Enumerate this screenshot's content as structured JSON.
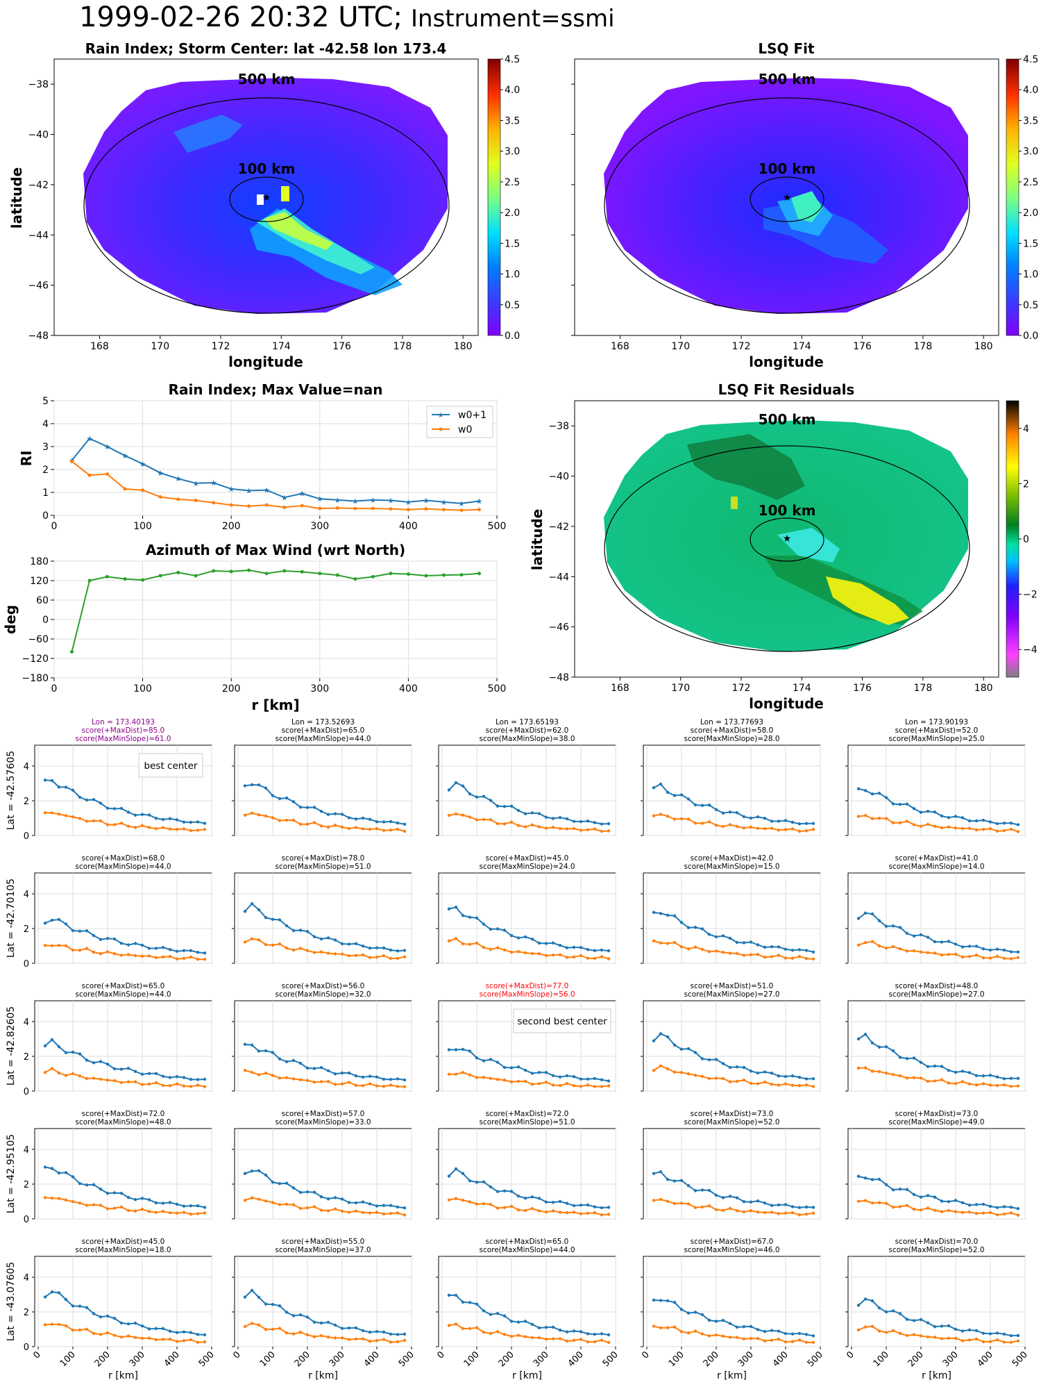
{
  "header": {
    "datetime": "1999-02-26 20:32 UTC;",
    "instrument": "Instrument=ssmi"
  },
  "maps": {
    "rain_title": "Rain Index; Storm Center: lat -42.58 lon 173.4",
    "fit_title": "LSQ Fit",
    "resid_title": "LSQ Fit Residuals",
    "xlabel": "longitude",
    "ylabel": "latitude",
    "ring_outer": "500 km",
    "ring_inner": "100 km",
    "xticks": [
      "168",
      "170",
      "172",
      "174",
      "176",
      "178",
      "180"
    ],
    "yticks": [
      "-38",
      "-40",
      "-42",
      "-44",
      "-46",
      "-48"
    ],
    "colorbar_ticks": [
      "0.0",
      "0.5",
      "1.0",
      "1.5",
      "2.0",
      "2.5",
      "3.0",
      "3.5",
      "4.0",
      "4.5"
    ],
    "resid_colorbar_ticks": [
      "4",
      "2",
      "0",
      "−2",
      "−4"
    ]
  },
  "chart_data": [
    {
      "type": "line",
      "title": "Rain Index; Max Value=nan",
      "xlabel": "",
      "ylabel": "RI",
      "xlim": [
        0,
        500
      ],
      "ylim": [
        0,
        5
      ],
      "grid": true,
      "legend": "top-right",
      "xticks": [
        "0",
        "100",
        "200",
        "300",
        "400",
        "500"
      ],
      "yticks": [
        "0",
        "1",
        "2",
        "3",
        "4",
        "5"
      ],
      "x": [
        20,
        40,
        60,
        80,
        100,
        120,
        140,
        160,
        180,
        200,
        220,
        240,
        260,
        280,
        300,
        320,
        340,
        360,
        380,
        400,
        420,
        440,
        460,
        480
      ],
      "series": [
        {
          "name": "w0+1",
          "color": "#1f77b4",
          "values": [
            2.4,
            3.35,
            3.0,
            2.6,
            2.25,
            1.85,
            1.6,
            1.4,
            1.42,
            1.15,
            1.08,
            1.1,
            0.78,
            0.95,
            0.72,
            0.67,
            0.62,
            0.67,
            0.65,
            0.58,
            0.65,
            0.58,
            0.52,
            0.62
          ]
        },
        {
          "name": "w0",
          "color": "#ff7f0e",
          "values": [
            2.35,
            1.75,
            1.8,
            1.15,
            1.1,
            0.8,
            0.7,
            0.65,
            0.55,
            0.45,
            0.4,
            0.45,
            0.35,
            0.42,
            0.3,
            0.32,
            0.3,
            0.3,
            0.28,
            0.25,
            0.28,
            0.25,
            0.22,
            0.25
          ]
        }
      ]
    },
    {
      "type": "line",
      "title": "Azimuth of Max Wind (wrt North)",
      "xlabel": "r [km]",
      "ylabel": "deg",
      "xlim": [
        0,
        500
      ],
      "ylim": [
        -180,
        180
      ],
      "grid": true,
      "xticks": [
        "0",
        "100",
        "200",
        "300",
        "400",
        "500"
      ],
      "yticks": [
        "180",
        "120",
        "60",
        "0",
        "−60",
        "−120",
        "−180"
      ],
      "x": [
        20,
        40,
        60,
        80,
        100,
        120,
        140,
        160,
        180,
        200,
        220,
        240,
        260,
        280,
        300,
        320,
        340,
        360,
        380,
        400,
        420,
        440,
        460,
        480
      ],
      "series": [
        {
          "color": "#2ca02c",
          "values": [
            -100,
            120,
            132,
            125,
            122,
            135,
            145,
            135,
            150,
            148,
            152,
            142,
            150,
            147,
            142,
            137,
            125,
            132,
            142,
            140,
            135,
            137,
            138,
            142
          ]
        }
      ]
    }
  ],
  "grid": {
    "xlabel": "r [km]",
    "xticks": [
      "0",
      "100",
      "200",
      "300",
      "400",
      "500"
    ],
    "yticks": [
      "0",
      "2",
      "4"
    ],
    "lon_labels": [
      "Lon = 173.40193",
      "Lon = 173.52693",
      "Lon = 173.65193",
      "Lon = 173.77693",
      "Lon = 173.90193"
    ],
    "lat_labels": [
      "Lat = -42.57605",
      "Lat = -42.70105",
      "Lat = -42.82605",
      "Lat = -42.95105",
      "Lat = -43.07605"
    ],
    "titles": [
      [
        "score(+MaxDist)=85.0|score(MaxMinSlope)=61.0",
        "score(+MaxDist)=65.0|score(MaxMinSlope)=44.0",
        "score(+MaxDist)=62.0|score(MaxMinSlope)=38.0",
        "score(+MaxDist)=58.0|score(MaxMinSlope)=28.0",
        "score(+MaxDist)=52.0|score(MaxMinSlope)=25.0"
      ],
      [
        "score(+MaxDist)=68.0|score(MaxMinSlope)=44.0",
        "score(+MaxDist)=78.0|score(MaxMinSlope)=51.0",
        "score(+MaxDist)=45.0|score(MaxMinSlope)=24.0",
        "score(+MaxDist)=42.0|score(MaxMinSlope)=15.0",
        "score(+MaxDist)=41.0|score(MaxMinSlope)=14.0"
      ],
      [
        "score(+MaxDist)=65.0|score(MaxMinSlope)=44.0",
        "score(+MaxDist)=56.0|score(MaxMinSlope)=32.0",
        "score(+MaxDist)=77.0|score(MaxMinSlope)=56.0",
        "score(+MaxDist)=51.0|score(MaxMinSlope)=27.0",
        "score(+MaxDist)=48.0|score(MaxMinSlope)=27.0"
      ],
      [
        "score(+MaxDist)=72.0|score(MaxMinSlope)=48.0",
        "score(+MaxDist)=57.0|score(MaxMinSlope)=33.0",
        "score(+MaxDist)=72.0|score(MaxMinSlope)=51.0",
        "score(+MaxDist)=73.0|score(MaxMinSlope)=52.0",
        "score(+MaxDist)=73.0|score(MaxMinSlope)=49.0"
      ],
      [
        "score(+MaxDist)=45.0|score(MaxMinSlope)=18.0",
        "score(+MaxDist)=55.0|score(MaxMinSlope)=37.0",
        "score(+MaxDist)=65.0|score(MaxMinSlope)=44.0",
        "score(+MaxDist)=67.0|score(MaxMinSlope)=46.0",
        "score(+MaxDist)=70.0|score(MaxMinSlope)=52.0"
      ]
    ],
    "best_label": "best center",
    "second_label": "second best center",
    "best_color": "#8b008b",
    "second_color": "#ff0000",
    "series_colors": [
      "#1f77b4",
      "#ff7f0e"
    ]
  }
}
